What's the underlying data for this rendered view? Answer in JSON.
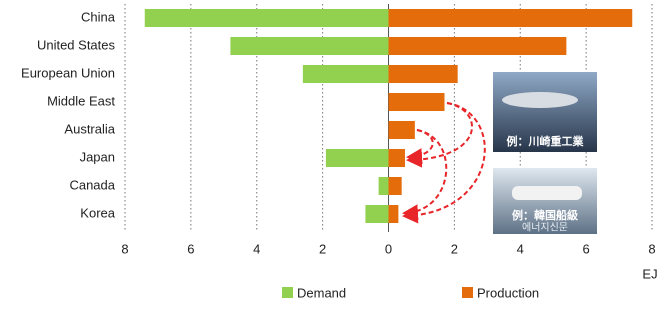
{
  "chart_data": {
    "type": "bar",
    "orientation": "horizontal",
    "categories": [
      "China",
      "United States",
      "European Union",
      "Middle East",
      "Australia",
      "Japan",
      "Canada",
      "Korea"
    ],
    "series": [
      {
        "name": "Demand",
        "color": "#92d050",
        "values": [
          -7.4,
          -4.8,
          -2.6,
          0,
          0,
          -1.9,
          -0.3,
          -0.7
        ]
      },
      {
        "name": "Production",
        "color": "#e46c0a",
        "values": [
          7.4,
          5.4,
          2.1,
          1.7,
          0.8,
          0.5,
          0.4,
          0.3
        ]
      }
    ],
    "xlim": [
      -8,
      8
    ],
    "xticks": [
      {
        "value": -8,
        "label": "8"
      },
      {
        "value": -6,
        "label": "6"
      },
      {
        "value": -4,
        "label": "4"
      },
      {
        "value": -2,
        "label": "2"
      },
      0,
      2,
      4,
      6,
      8
    ],
    "xlabel": "EJ",
    "grid": true,
    "annotations": [
      "例：川崎重工業",
      "例：韓国船級",
      "에너지신문"
    ]
  }
}
